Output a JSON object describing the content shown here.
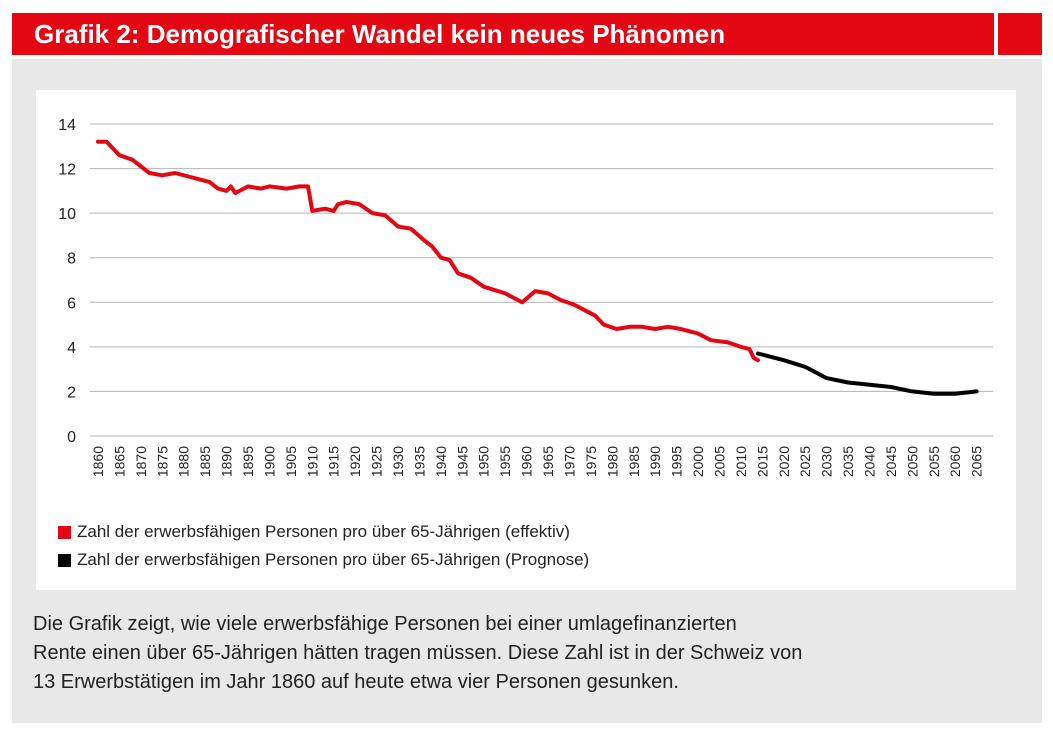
{
  "title": "Grafik 2: Demografischer Wandel kein neues Phänomen",
  "colors": {
    "accent": "#e30613",
    "forecast": "#000000",
    "grid": "#b3b3b3",
    "panel": "#e8e8e8"
  },
  "chart_data": {
    "type": "line",
    "ylim": [
      0,
      14
    ],
    "yticks": [
      0,
      2,
      4,
      6,
      8,
      10,
      12,
      14
    ],
    "xlim": [
      1860,
      2065
    ],
    "xticks": [
      1860,
      1865,
      1870,
      1875,
      1880,
      1885,
      1890,
      1895,
      1900,
      1905,
      1910,
      1915,
      1920,
      1925,
      1930,
      1935,
      1940,
      1945,
      1950,
      1955,
      1960,
      1965,
      1970,
      1975,
      1980,
      1985,
      1990,
      1995,
      2000,
      2005,
      2010,
      2015,
      2020,
      2025,
      2030,
      2035,
      2040,
      2045,
      2050,
      2055,
      2060,
      2065
    ],
    "grid": true,
    "legend_position": "bottom-left",
    "series": [
      {
        "name": "Zahl der erwerbsfähigen Personen pro über 65-Jährigen (effektiv)",
        "color": "#e30613",
        "x": [
          1860,
          1862,
          1865,
          1868,
          1872,
          1875,
          1878,
          1882,
          1886,
          1888,
          1890,
          1891,
          1892,
          1895,
          1898,
          1900,
          1904,
          1907,
          1909,
          1910,
          1913,
          1915,
          1916,
          1918,
          1921,
          1924,
          1927,
          1930,
          1933,
          1936,
          1938,
          1940,
          1942,
          1944,
          1947,
          1950,
          1955,
          1958,
          1959,
          1962,
          1965,
          1968,
          1971,
          1974,
          1976,
          1978,
          1981,
          1984,
          1987,
          1990,
          1993,
          1996,
          1998,
          2000,
          2003,
          2007,
          2010,
          2012,
          2013,
          2014
        ],
        "y": [
          13.2,
          13.2,
          12.6,
          12.4,
          11.8,
          11.7,
          11.8,
          11.6,
          11.4,
          11.1,
          11.0,
          11.2,
          10.9,
          11.2,
          11.1,
          11.2,
          11.1,
          11.2,
          11.2,
          10.1,
          10.2,
          10.1,
          10.4,
          10.5,
          10.4,
          10.0,
          9.9,
          9.4,
          9.3,
          8.8,
          8.5,
          8.0,
          7.9,
          7.3,
          7.1,
          6.7,
          6.4,
          6.1,
          6.0,
          6.5,
          6.4,
          6.1,
          5.9,
          5.6,
          5.4,
          5.0,
          4.8,
          4.9,
          4.9,
          4.8,
          4.9,
          4.8,
          4.7,
          4.6,
          4.3,
          4.2,
          4.0,
          3.9,
          3.5,
          3.4
        ]
      },
      {
        "name": "Zahl der erwerbsfähigen Personen pro über 65-Jährigen (Prognose)",
        "color": "#000000",
        "x": [
          2014,
          2020,
          2025,
          2030,
          2035,
          2040,
          2045,
          2050,
          2055,
          2060,
          2065
        ],
        "y": [
          3.7,
          3.4,
          3.1,
          2.6,
          2.4,
          2.3,
          2.2,
          2.0,
          1.9,
          1.9,
          2.0
        ]
      }
    ]
  },
  "legend": [
    {
      "label": "Zahl der erwerbsfähigen Personen pro über 65-Jährigen (effektiv)",
      "color": "#e30613"
    },
    {
      "label": "Zahl der erwerbsfähigen Personen pro über 65-Jährigen (Prognose)",
      "color": "#000000"
    }
  ],
  "caption": [
    "Die Grafik zeigt, wie viele erwerbsfähige Personen bei einer umlagefinanzierten",
    "Rente einen über 65-Jährigen hätten tragen müssen. Diese Zahl ist in der Schweiz von",
    "13 Erwerbstätigen im Jahr 1860 auf heute etwa vier Personen gesunken."
  ]
}
